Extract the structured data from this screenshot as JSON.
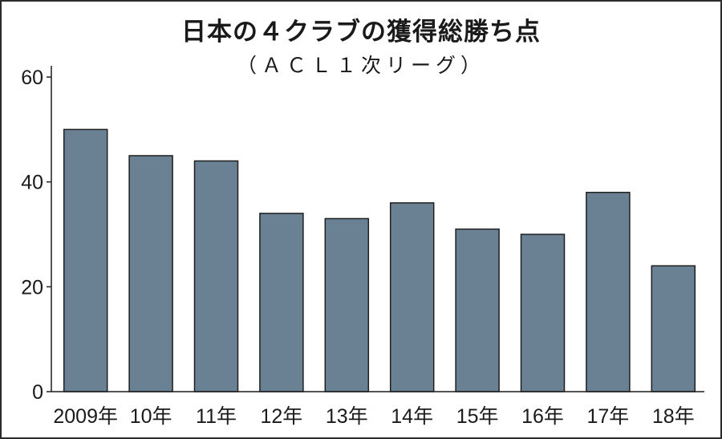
{
  "chart_data": {
    "type": "bar",
    "title": "日本の４クラブの獲得総勝ち点",
    "subtitle": "（ＡＣＬ１次リーグ）",
    "categories": [
      "2009年",
      "10年",
      "11年",
      "12年",
      "13年",
      "14年",
      "15年",
      "16年",
      "17年",
      "18年"
    ],
    "values": [
      50,
      45,
      44,
      34,
      33,
      36,
      31,
      30,
      38,
      24
    ],
    "ylim": [
      0,
      60
    ],
    "yticks": [
      "0",
      "20",
      "40",
      "60"
    ],
    "bar_color": "#6a8194",
    "grid": false,
    "legend": "none"
  }
}
